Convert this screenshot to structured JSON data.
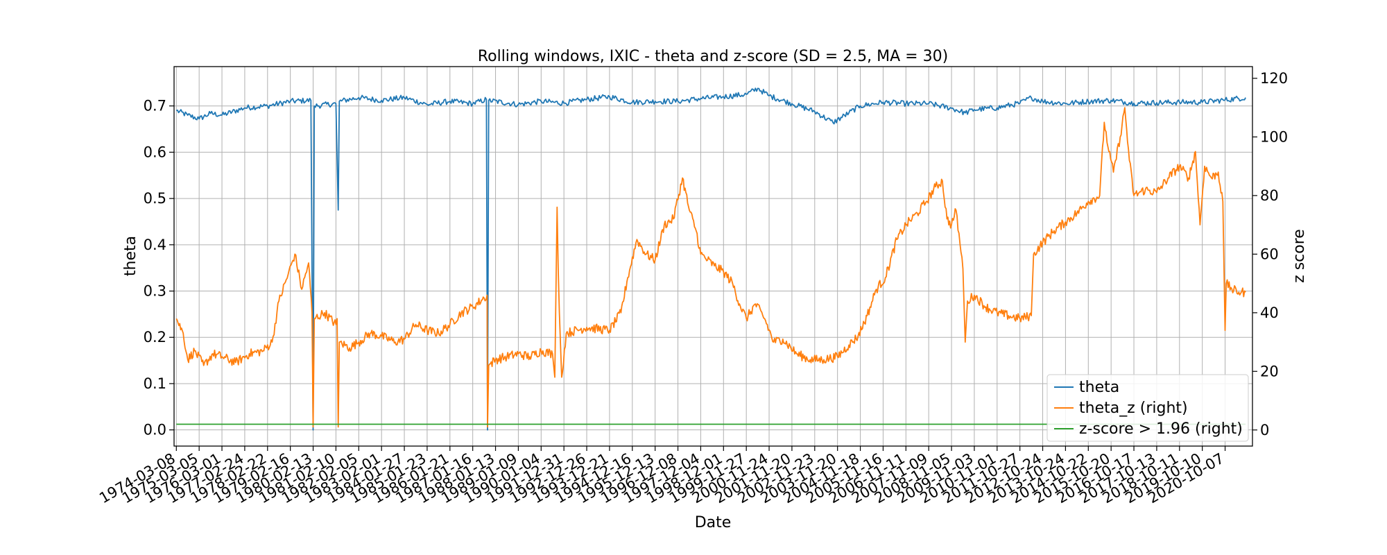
{
  "chart_data": {
    "type": "line",
    "title": "Rolling windows, IXIC - theta and z-score (SD = 2.5, MA = 30)",
    "xlabel": "Date",
    "ylabel": "theta",
    "ylabel_right": "z score",
    "ylim": [
      -0.035,
      0.785
    ],
    "ylim_right": [
      -5.5,
      124.0
    ],
    "yticks": [
      "0.0",
      "0.1",
      "0.2",
      "0.3",
      "0.4",
      "0.5",
      "0.6",
      "0.7"
    ],
    "yticks_right": [
      "0",
      "20",
      "40",
      "60",
      "80",
      "100",
      "120"
    ],
    "xticks": [
      "1974-03-08",
      "1975-03-05",
      "1976-03-01",
      "1977-02-24",
      "1978-02-22",
      "1979-02-16",
      "1980-02-13",
      "1981-02-10",
      "1982-02-05",
      "1983-02-01",
      "1984-01-27",
      "1985-01-23",
      "1986-01-21",
      "1987-01-16",
      "1988-01-13",
      "1989-01-09",
      "1990-01-04",
      "1991-12-31",
      "1992-12-26",
      "1993-12-21",
      "1994-12-16",
      "1995-12-13",
      "1996-12-08",
      "1997-12-04",
      "1998-12-01",
      "1999-11-27",
      "2000-11-24",
      "2001-11-20",
      "2002-11-23",
      "2003-11-20",
      "2004-11-18",
      "2005-11-16",
      "2006-11-11",
      "2007-11-09",
      "2008-11-05",
      "2009-11-03",
      "2010-11-01",
      "2011-10-27",
      "2012-10-24",
      "2013-10-24",
      "2014-10-22",
      "2015-10-20",
      "2016-10-17",
      "2017-10-13",
      "2018-10-11",
      "2019-10-10",
      "2020-10-07"
    ],
    "grid": true,
    "legend": "lower-right",
    "series": [
      {
        "name": "theta",
        "axis": "left",
        "color": "#1f77b4",
        "points": [
          [
            0.0,
            0.69
          ],
          [
            0.5,
            0.68
          ],
          [
            1.0,
            0.672
          ],
          [
            1.5,
            0.684
          ],
          [
            2.0,
            0.68
          ],
          [
            3.0,
            0.696
          ],
          [
            4.0,
            0.7
          ],
          [
            5.0,
            0.71
          ],
          [
            5.9,
            0.712
          ],
          [
            6.0,
            0.0
          ],
          [
            6.05,
            0.7
          ],
          [
            7.0,
            0.705
          ],
          [
            7.1,
            0.475
          ],
          [
            7.15,
            0.71
          ],
          [
            8.0,
            0.718
          ],
          [
            9.0,
            0.712
          ],
          [
            10.0,
            0.718
          ],
          [
            11.0,
            0.703
          ],
          [
            12.0,
            0.71
          ],
          [
            13.0,
            0.705
          ],
          [
            13.6,
            0.714
          ],
          [
            13.65,
            0.0
          ],
          [
            13.7,
            0.712
          ],
          [
            15.0,
            0.703
          ],
          [
            16.0,
            0.71
          ],
          [
            17.0,
            0.706
          ],
          [
            18.0,
            0.714
          ],
          [
            19.0,
            0.72
          ],
          [
            20.0,
            0.708
          ],
          [
            21.0,
            0.71
          ],
          [
            22.0,
            0.71
          ],
          [
            23.0,
            0.716
          ],
          [
            24.0,
            0.72
          ],
          [
            25.0,
            0.725
          ],
          [
            25.5,
            0.738
          ],
          [
            26.0,
            0.722
          ],
          [
            27.0,
            0.705
          ],
          [
            28.0,
            0.688
          ],
          [
            28.8,
            0.664
          ],
          [
            29.5,
            0.685
          ],
          [
            30.0,
            0.7
          ],
          [
            31.0,
            0.708
          ],
          [
            32.0,
            0.705
          ],
          [
            33.0,
            0.705
          ],
          [
            34.0,
            0.695
          ],
          [
            34.6,
            0.685
          ],
          [
            35.0,
            0.692
          ],
          [
            36.0,
            0.696
          ],
          [
            37.0,
            0.706
          ],
          [
            37.5,
            0.718
          ],
          [
            38.0,
            0.71
          ],
          [
            39.0,
            0.705
          ],
          [
            40.0,
            0.71
          ],
          [
            41.0,
            0.712
          ],
          [
            42.0,
            0.706
          ],
          [
            43.0,
            0.707
          ],
          [
            44.0,
            0.708
          ],
          [
            45.0,
            0.708
          ],
          [
            46.0,
            0.713
          ],
          [
            46.9,
            0.718
          ]
        ]
      },
      {
        "name": "theta_z (right)",
        "axis": "right",
        "color": "#ff7f0e",
        "points": [
          [
            0.0,
            38
          ],
          [
            0.3,
            33
          ],
          [
            0.5,
            24
          ],
          [
            0.8,
            27
          ],
          [
            1.2,
            22
          ],
          [
            1.6,
            26
          ],
          [
            2.0,
            25
          ],
          [
            2.6,
            23
          ],
          [
            3.2,
            26
          ],
          [
            3.8,
            27
          ],
          [
            4.2,
            30
          ],
          [
            4.5,
            44
          ],
          [
            4.9,
            53
          ],
          [
            5.2,
            60
          ],
          [
            5.5,
            48
          ],
          [
            5.8,
            57
          ],
          [
            5.95,
            40
          ],
          [
            6.0,
            1
          ],
          [
            6.05,
            38
          ],
          [
            6.5,
            40
          ],
          [
            7.0,
            36
          ],
          [
            7.05,
            38
          ],
          [
            7.1,
            1
          ],
          [
            7.15,
            30
          ],
          [
            7.6,
            28
          ],
          [
            8.0,
            30
          ],
          [
            8.5,
            33
          ],
          [
            9.0,
            32
          ],
          [
            9.6,
            30
          ],
          [
            10.0,
            31
          ],
          [
            10.5,
            36
          ],
          [
            11.0,
            34
          ],
          [
            11.5,
            33
          ],
          [
            12.0,
            36
          ],
          [
            12.5,
            40
          ],
          [
            13.0,
            42
          ],
          [
            13.5,
            45
          ],
          [
            13.63,
            46
          ],
          [
            13.65,
            1
          ],
          [
            13.7,
            22
          ],
          [
            14.0,
            24
          ],
          [
            14.5,
            25
          ],
          [
            15.0,
            26
          ],
          [
            15.5,
            25
          ],
          [
            16.0,
            27
          ],
          [
            16.5,
            26
          ],
          [
            16.6,
            18
          ],
          [
            16.7,
            76
          ],
          [
            16.75,
            55
          ],
          [
            16.8,
            40
          ],
          [
            16.9,
            18
          ],
          [
            17.1,
            33
          ],
          [
            18.0,
            35
          ],
          [
            19.0,
            34
          ],
          [
            19.5,
            40
          ],
          [
            19.8,
            52
          ],
          [
            20.2,
            65
          ],
          [
            20.6,
            60
          ],
          [
            21.0,
            58
          ],
          [
            21.4,
            70
          ],
          [
            21.8,
            72
          ],
          [
            22.2,
            86
          ],
          [
            22.5,
            75
          ],
          [
            22.8,
            68
          ],
          [
            23.0,
            60
          ],
          [
            23.3,
            58
          ],
          [
            23.6,
            56
          ],
          [
            24.0,
            54
          ],
          [
            24.4,
            50
          ],
          [
            24.7,
            43
          ],
          [
            25.0,
            38
          ],
          [
            25.4,
            43
          ],
          [
            25.8,
            38
          ],
          [
            26.2,
            30
          ],
          [
            26.6,
            31
          ],
          [
            27.2,
            26
          ],
          [
            27.8,
            24
          ],
          [
            28.4,
            24
          ],
          [
            29.0,
            25
          ],
          [
            29.5,
            29
          ],
          [
            29.9,
            32
          ],
          [
            30.3,
            39
          ],
          [
            30.7,
            48
          ],
          [
            31.1,
            52
          ],
          [
            31.6,
            65
          ],
          [
            32.0,
            70
          ],
          [
            32.5,
            74
          ],
          [
            32.9,
            78
          ],
          [
            33.3,
            83
          ],
          [
            33.6,
            85
          ],
          [
            33.8,
            72
          ],
          [
            34.0,
            70
          ],
          [
            34.2,
            75
          ],
          [
            34.5,
            55
          ],
          [
            34.6,
            30
          ],
          [
            34.7,
            44
          ],
          [
            35.0,
            46
          ],
          [
            35.5,
            42
          ],
          [
            36.0,
            40
          ],
          [
            36.5,
            39
          ],
          [
            37.0,
            38
          ],
          [
            37.5,
            39
          ],
          [
            37.6,
            60
          ],
          [
            38.0,
            64
          ],
          [
            38.5,
            68
          ],
          [
            39.0,
            71
          ],
          [
            39.5,
            74
          ],
          [
            40.0,
            78
          ],
          [
            40.5,
            80
          ],
          [
            40.7,
            105
          ],
          [
            40.9,
            95
          ],
          [
            41.1,
            88
          ],
          [
            41.4,
            100
          ],
          [
            41.6,
            110
          ],
          [
            41.8,
            92
          ],
          [
            42.0,
            80
          ],
          [
            42.5,
            82
          ],
          [
            43.0,
            81
          ],
          [
            43.5,
            86
          ],
          [
            44.0,
            90
          ],
          [
            44.4,
            86
          ],
          [
            44.7,
            95
          ],
          [
            44.9,
            70
          ],
          [
            45.1,
            90
          ],
          [
            45.4,
            86
          ],
          [
            45.7,
            88
          ],
          [
            45.9,
            78
          ],
          [
            46.0,
            34
          ],
          [
            46.05,
            50
          ],
          [
            46.3,
            48
          ],
          [
            46.6,
            47
          ],
          [
            46.9,
            47
          ]
        ]
      },
      {
        "name": "z-score > 1.96 (right)",
        "axis": "right",
        "color": "#2ca02c",
        "points": [
          [
            0.0,
            1.96
          ],
          [
            46.9,
            1.96
          ]
        ]
      }
    ]
  }
}
